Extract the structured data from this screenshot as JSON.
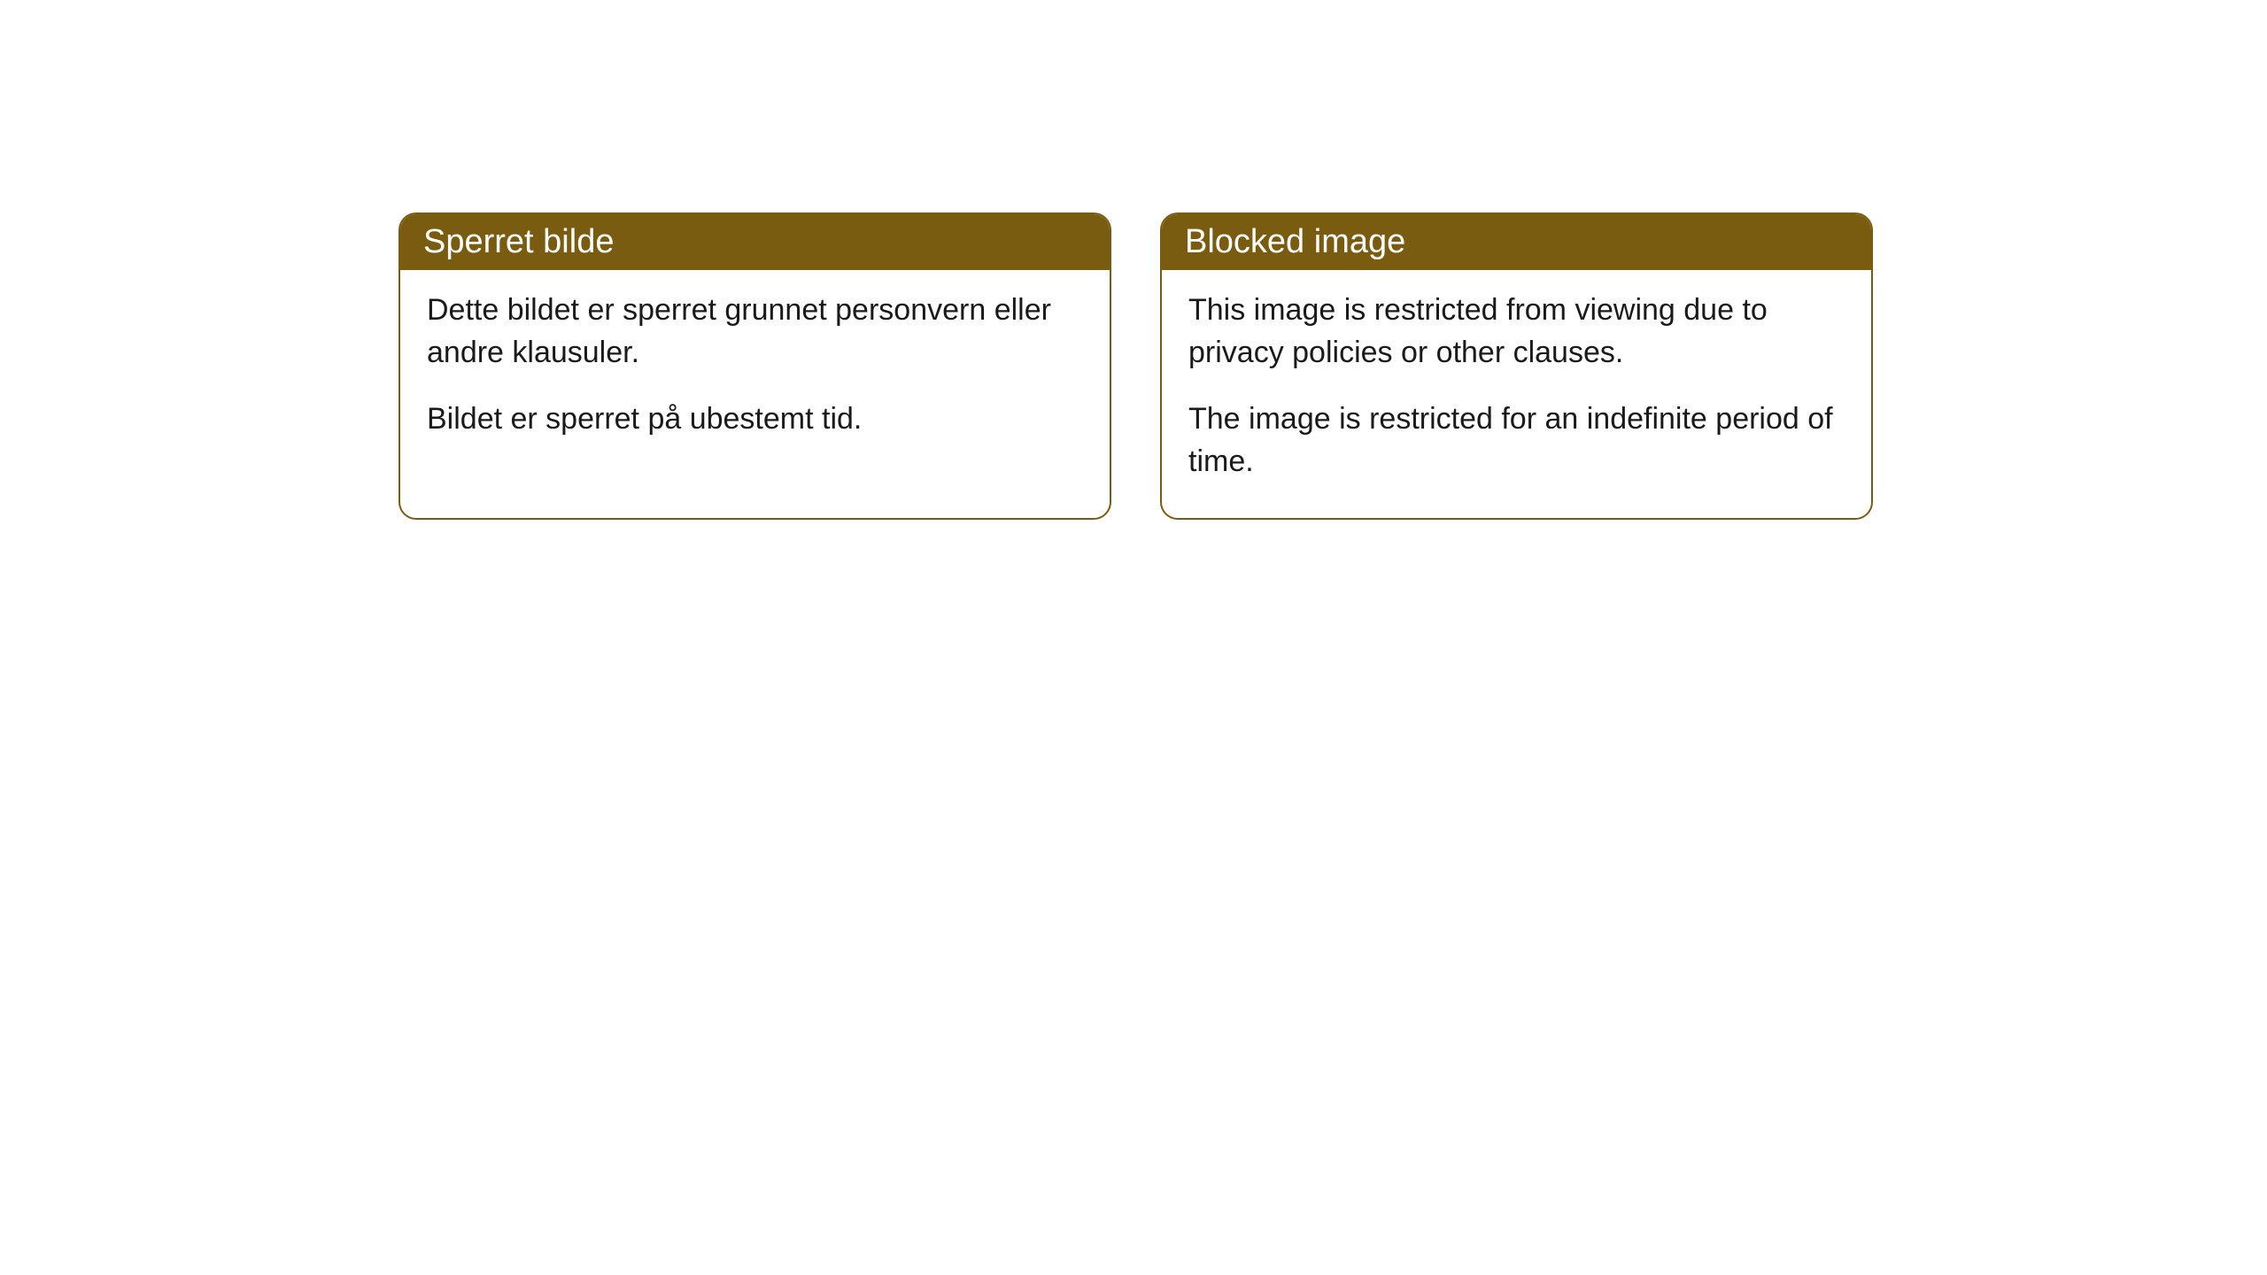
{
  "cards": [
    {
      "title": "Sperret bilde",
      "paragraph1": "Dette bildet er sperret grunnet personvern eller andre klausuler.",
      "paragraph2": "Bildet er sperret på ubestemt tid."
    },
    {
      "title": "Blocked image",
      "paragraph1": "This image is restricted from viewing due to privacy policies or other clauses.",
      "paragraph2": "The image is restricted for an indefinite period of time."
    }
  ],
  "styles": {
    "header_bg_color": "#7a5c10",
    "header_text_color": "#ffffff",
    "border_color": "#7a5c10",
    "body_bg_color": "#ffffff",
    "body_text_color": "#1a1a1a",
    "border_radius": 20,
    "title_fontsize": 38,
    "body_fontsize": 34
  }
}
